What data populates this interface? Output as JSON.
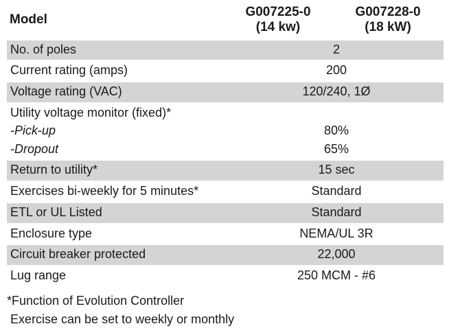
{
  "header": {
    "model_label": "Model",
    "col1_line1": "G007225-0",
    "col1_line2": "(14 kw)",
    "col2_line1": "G007228-0",
    "col2_line2": "(18 kW)"
  },
  "rows": {
    "poles": {
      "label": "No. of poles",
      "value": "2"
    },
    "current": {
      "label": "Current rating (amps)",
      "value": "200"
    },
    "voltage": {
      "label": "Voltage rating (VAC)",
      "value": "120/240, 1Ø"
    },
    "monitor": {
      "label": "Utility voltage monitor (fixed)*"
    },
    "pickup": {
      "label": "-Pick-up",
      "value": "80%"
    },
    "dropout": {
      "label": "-Dropout",
      "value": "65%"
    },
    "return": {
      "label": "Return to utility*",
      "value": "15 sec"
    },
    "exercise": {
      "label": "Exercises bi-weekly for 5 minutes*",
      "value": "Standard"
    },
    "listed": {
      "label": "ETL or UL Listed",
      "value": "Standard"
    },
    "enclosure": {
      "label": "Enclosure type",
      "value": "NEMA/UL 3R"
    },
    "breaker": {
      "label": "Circuit breaker protected",
      "value": "22,000"
    },
    "lug": {
      "label": "Lug range",
      "value": "250 MCM - #6"
    }
  },
  "footnote": {
    "line1": "*Function of Evolution Controller",
    "line2": " Exercise can be set to weekly or monthly"
  }
}
